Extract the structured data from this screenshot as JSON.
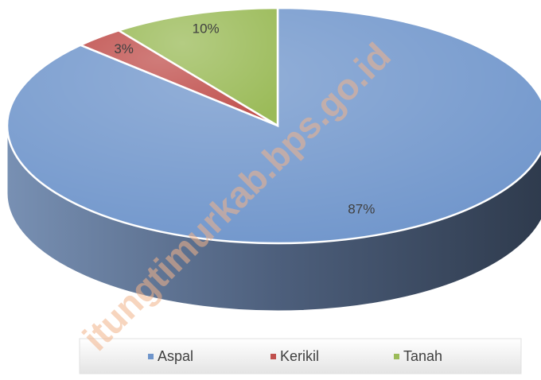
{
  "chart_data": {
    "type": "pie",
    "categories": [
      "Aspal",
      "Kerikil",
      "Tanah"
    ],
    "values": [
      87,
      3,
      10
    ],
    "value_labels": [
      "87%",
      "3%",
      "10%"
    ],
    "colors": [
      "#6f95cb",
      "#c0504d",
      "#9bbb59"
    ],
    "legend": "bottom",
    "watermark": "itungtimurkab.bps.go.id"
  }
}
